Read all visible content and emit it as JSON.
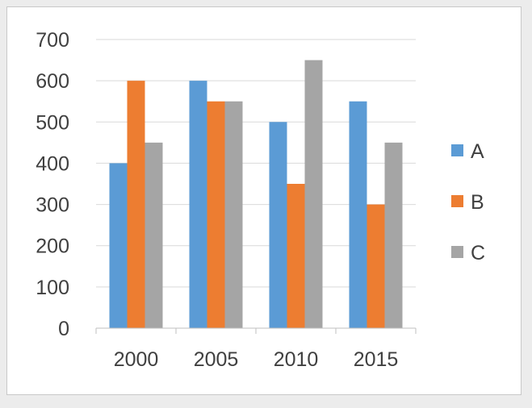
{
  "chart_data": {
    "type": "bar",
    "categories": [
      "2000",
      "2005",
      "2010",
      "2015"
    ],
    "series": [
      {
        "name": "A",
        "values": [
          400,
          600,
          500,
          550
        ],
        "color": "#5b9bd5"
      },
      {
        "name": "B",
        "values": [
          600,
          550,
          350,
          300
        ],
        "color": "#ed7d31"
      },
      {
        "name": "C",
        "values": [
          450,
          550,
          650,
          450
        ],
        "color": "#a5a5a5"
      }
    ],
    "ylim": [
      0,
      700
    ],
    "yticks": [
      0,
      100,
      200,
      300,
      400,
      500,
      600,
      700
    ],
    "grid": true,
    "legend": "right",
    "title": "",
    "xlabel": "",
    "ylabel": ""
  }
}
